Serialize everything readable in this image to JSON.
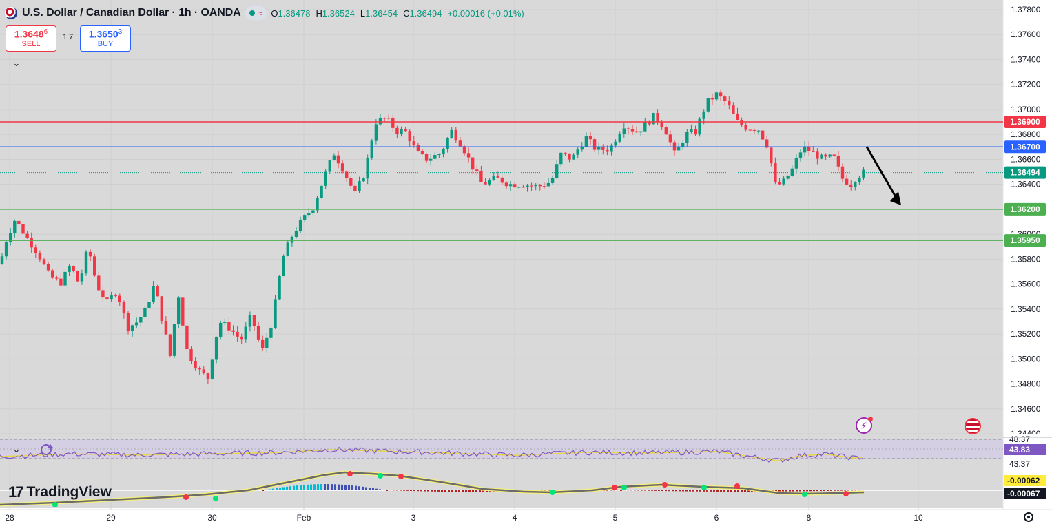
{
  "header": {
    "symbol": "U.S. Dollar / Canadian Dollar · 1h · OANDA",
    "ohlc": [
      {
        "k": "O",
        "v": "1.36478"
      },
      {
        "k": "H",
        "v": "1.36524"
      },
      {
        "k": "L",
        "v": "1.36454"
      },
      {
        "k": "C",
        "v": "1.36494"
      }
    ],
    "change": "+0.00016 (+0.01%)"
  },
  "trade": {
    "sell_price": "1.3648",
    "sell_pip": "6",
    "sell_label": "SELL",
    "spread": "1.7",
    "buy_price": "1.3650",
    "buy_pip": "3",
    "buy_label": "BUY"
  },
  "brand": "TradingView",
  "colors": {
    "bull": "#089981",
    "bear": "#f23645",
    "resistance": "#f23645",
    "pivot": "#2962ff",
    "support": "#4caf50",
    "rsi": "#7e57c2",
    "rsi_ma": "#e6d64a"
  },
  "icons": [
    "flag-icon",
    "collapse-chevron-icon",
    "refresh-icon",
    "lightning-icon",
    "us-flag-icon",
    "settings-icon"
  ],
  "chart_data": {
    "type": "candlestick",
    "timeframe": "1h",
    "y_axis": {
      "ticks": [
        "1.37800",
        "1.37600",
        "1.37400",
        "1.37200",
        "1.37000",
        "1.36800",
        "1.36600",
        "1.36400",
        "1.36200",
        "1.36000",
        "1.35800",
        "1.35600",
        "1.35400",
        "1.35200",
        "1.35000",
        "1.34800",
        "1.34600",
        "1.34400"
      ],
      "ylim": [
        1.3436,
        1.379
      ]
    },
    "x_axis": {
      "ticks": [
        {
          "label": "28",
          "px": 14
        },
        {
          "label": "29",
          "px": 161
        },
        {
          "label": "30",
          "px": 308
        },
        {
          "label": "Feb",
          "px": 441
        },
        {
          "label": "3",
          "px": 600
        },
        {
          "label": "4",
          "px": 747
        },
        {
          "label": "5",
          "px": 893
        },
        {
          "label": "6",
          "px": 1040
        },
        {
          "label": "8",
          "px": 1174
        },
        {
          "label": "10",
          "px": 1333
        }
      ]
    },
    "horizontal_lines": [
      {
        "price": 1.369,
        "label": "1.36900",
        "color": "#f23645"
      },
      {
        "price": 1.367,
        "label": "1.36700",
        "color": "#2962ff"
      },
      {
        "price": 1.362,
        "label": "1.36200",
        "color": "#4caf50"
      },
      {
        "price": 1.3595,
        "label": "1.35950",
        "color": "#4caf50"
      }
    ],
    "last_price": {
      "price": 1.36494,
      "label": "1.36494",
      "color": "#089981"
    },
    "arrow": {
      "from": {
        "x": 1258,
        "y": 213
      },
      "to": {
        "x": 1308,
        "y": 298
      }
    },
    "anchors": [
      [
        0,
        1.3576
      ],
      [
        10,
        1.3597
      ],
      [
        22,
        1.3612
      ],
      [
        38,
        1.3598
      ],
      [
        55,
        1.3585
      ],
      [
        72,
        1.3566
      ],
      [
        88,
        1.3561
      ],
      [
        102,
        1.3575
      ],
      [
        115,
        1.356
      ],
      [
        128,
        1.359
      ],
      [
        140,
        1.356
      ],
      [
        155,
        1.3545
      ],
      [
        170,
        1.3555
      ],
      [
        185,
        1.3525
      ],
      [
        200,
        1.353
      ],
      [
        212,
        1.354
      ],
      [
        224,
        1.356
      ],
      [
        236,
        1.353
      ],
      [
        248,
        1.35
      ],
      [
        258,
        1.3555
      ],
      [
        272,
        1.3505
      ],
      [
        290,
        1.349
      ],
      [
        302,
        1.3485
      ],
      [
        318,
        1.353
      ],
      [
        333,
        1.3525
      ],
      [
        350,
        1.3515
      ],
      [
        365,
        1.3535
      ],
      [
        380,
        1.3505
      ],
      [
        395,
        1.353
      ],
      [
        410,
        1.358
      ],
      [
        425,
        1.36
      ],
      [
        440,
        1.3612
      ],
      [
        455,
        1.3622
      ],
      [
        470,
        1.3645
      ],
      [
        485,
        1.3665
      ],
      [
        500,
        1.365
      ],
      [
        515,
        1.3632
      ],
      [
        530,
        1.365
      ],
      [
        545,
        1.369
      ],
      [
        560,
        1.3693
      ],
      [
        575,
        1.3683
      ],
      [
        590,
        1.3682
      ],
      [
        605,
        1.3665
      ],
      [
        620,
        1.366
      ],
      [
        640,
        1.3665
      ],
      [
        655,
        1.3683
      ],
      [
        670,
        1.3672
      ],
      [
        685,
        1.3655
      ],
      [
        700,
        1.364
      ],
      [
        720,
        1.3645
      ],
      [
        740,
        1.364
      ],
      [
        760,
        1.364
      ],
      [
        780,
        1.3638
      ],
      [
        800,
        1.3642
      ],
      [
        815,
        1.3665
      ],
      [
        830,
        1.366
      ],
      [
        850,
        1.3678
      ],
      [
        865,
        1.3668
      ],
      [
        885,
        1.3668
      ],
      [
        905,
        1.3688
      ],
      [
        925,
        1.3682
      ],
      [
        950,
        1.3695
      ],
      [
        965,
        1.3685
      ],
      [
        980,
        1.3663
      ],
      [
        995,
        1.368
      ],
      [
        1010,
        1.3682
      ],
      [
        1025,
        1.3705
      ],
      [
        1040,
        1.3712
      ],
      [
        1055,
        1.3705
      ],
      [
        1070,
        1.369
      ],
      [
        1085,
        1.3685
      ],
      [
        1100,
        1.3685
      ],
      [
        1115,
        1.367
      ],
      [
        1125,
        1.364
      ],
      [
        1135,
        1.364
      ],
      [
        1150,
        1.3652
      ],
      [
        1165,
        1.367
      ],
      [
        1180,
        1.3665
      ],
      [
        1195,
        1.366
      ],
      [
        1210,
        1.3662
      ],
      [
        1222,
        1.3645
      ],
      [
        1235,
        1.364
      ],
      [
        1245,
        1.3647
      ],
      [
        1254,
        1.36494
      ]
    ]
  },
  "indicators": {
    "rsi": {
      "upper": "48.37",
      "value": "43.83",
      "lower": "43.37",
      "anchors": [
        [
          0,
          43.9
        ],
        [
          100,
          44.6
        ],
        [
          200,
          44.3
        ],
        [
          300,
          44.6
        ],
        [
          400,
          44.9
        ],
        [
          480,
          45.7
        ],
        [
          560,
          45.3
        ],
        [
          650,
          44.8
        ],
        [
          750,
          44.2
        ],
        [
          850,
          45.0
        ],
        [
          940,
          44.8
        ],
        [
          1040,
          45.2
        ],
        [
          1130,
          42.8
        ],
        [
          1160,
          44.1
        ],
        [
          1200,
          44.5
        ],
        [
          1240,
          43.5
        ],
        [
          1254,
          43.83
        ]
      ]
    },
    "macd": {
      "values": [
        "-0.00062",
        "-0.00067"
      ],
      "labels_colors": [
        "#ffeb3b",
        "#131722"
      ]
    }
  }
}
